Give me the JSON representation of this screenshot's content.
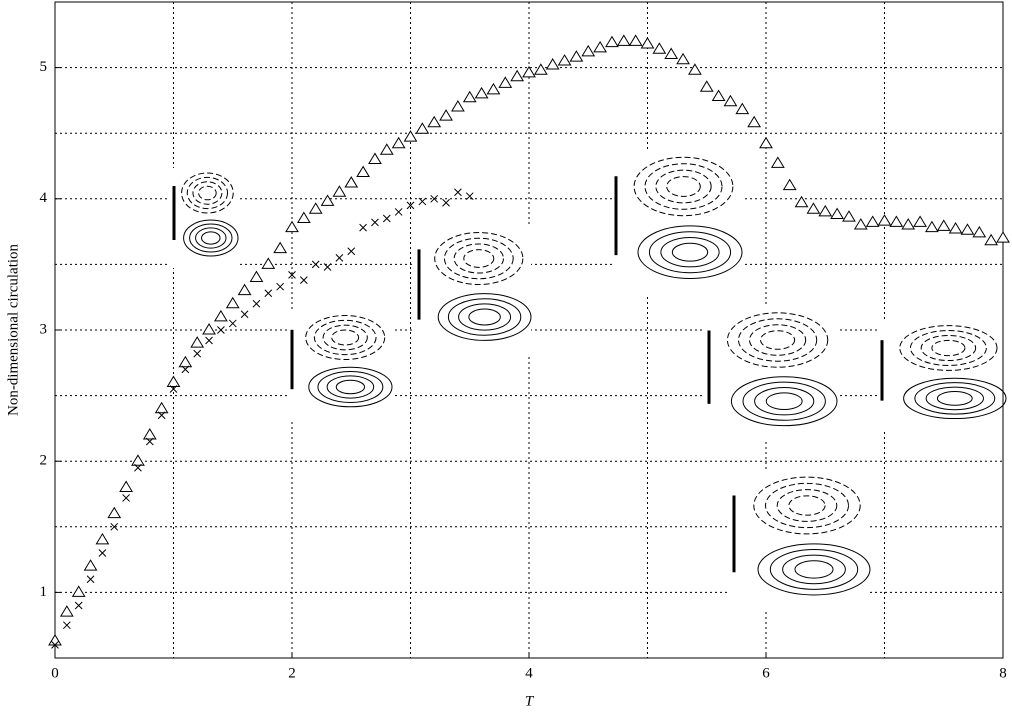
{
  "chart_data": {
    "type": "scatter",
    "xlabel": "T",
    "ylabel": "Non-dimensional circulation",
    "xlim": [
      0,
      8
    ],
    "ylim": [
      0.5,
      5.5
    ],
    "xticks": [
      0,
      2,
      4,
      6,
      8
    ],
    "yticks": [
      1,
      2,
      3,
      4,
      5
    ],
    "x_minor_grid": [
      1,
      3,
      5,
      7
    ],
    "y_minor_grid": [
      1.5,
      2.5,
      3.5,
      4.5
    ],
    "grid": true,
    "series": [
      {
        "marker": "triangle",
        "color": "#000000",
        "x": [
          0,
          0.1,
          0.2,
          0.3,
          0.4,
          0.5,
          0.6,
          0.7,
          0.8,
          0.9,
          1.0,
          1.1,
          1.2,
          1.3,
          1.4,
          1.5,
          1.6,
          1.7,
          1.8,
          1.9,
          2.0,
          2.1,
          2.2,
          2.3,
          2.4,
          2.5,
          2.6,
          2.7,
          2.8,
          2.9,
          3.0,
          3.1,
          3.2,
          3.3,
          3.4,
          3.5,
          3.6,
          3.7,
          3.8,
          3.9,
          4.0,
          4.1,
          4.2,
          4.3,
          4.4,
          4.5,
          4.6,
          4.7,
          4.8,
          4.9,
          5.0,
          5.1,
          5.2,
          5.3,
          5.4,
          5.5,
          5.6,
          5.7,
          5.8,
          5.9,
          6.0,
          6.1,
          6.2,
          6.3,
          6.4,
          6.5,
          6.6,
          6.7,
          6.8,
          6.9,
          7.0,
          7.1,
          7.2,
          7.3,
          7.4,
          7.5,
          7.6,
          7.7,
          7.8,
          7.9,
          8.0
        ],
        "values": [
          0.63,
          0.85,
          1.0,
          1.2,
          1.4,
          1.6,
          1.8,
          2.0,
          2.2,
          2.4,
          2.6,
          2.75,
          2.9,
          3.0,
          3.1,
          3.2,
          3.3,
          3.4,
          3.5,
          3.62,
          3.78,
          3.85,
          3.92,
          3.98,
          4.05,
          4.12,
          4.2,
          4.3,
          4.37,
          4.42,
          4.47,
          4.53,
          4.58,
          4.63,
          4.7,
          4.77,
          4.8,
          4.83,
          4.88,
          4.93,
          4.96,
          4.98,
          5.02,
          5.05,
          5.08,
          5.12,
          5.15,
          5.19,
          5.2,
          5.2,
          5.18,
          5.14,
          5.1,
          5.06,
          4.98,
          4.85,
          4.78,
          4.74,
          4.68,
          4.58,
          4.42,
          4.27,
          4.1,
          3.97,
          3.92,
          3.9,
          3.88,
          3.86,
          3.8,
          3.82,
          3.83,
          3.82,
          3.8,
          3.82,
          3.78,
          3.79,
          3.77,
          3.76,
          3.74,
          3.68,
          3.7
        ]
      },
      {
        "marker": "cross",
        "color": "#000000",
        "x": [
          0,
          0.1,
          0.2,
          0.3,
          0.4,
          0.5,
          0.6,
          0.7,
          0.8,
          0.9,
          1.0,
          1.1,
          1.2,
          1.3,
          1.4,
          1.5,
          1.6,
          1.7,
          1.8,
          1.9,
          2.0,
          2.1,
          2.2,
          2.3,
          2.4,
          2.5,
          2.6,
          2.7,
          2.8,
          2.9,
          3.0,
          3.1,
          3.2,
          3.3,
          3.4,
          3.5
        ],
        "values": [
          0.6,
          0.75,
          0.9,
          1.1,
          1.3,
          1.5,
          1.72,
          1.95,
          2.15,
          2.35,
          2.55,
          2.7,
          2.82,
          2.92,
          3.0,
          3.05,
          3.12,
          3.2,
          3.28,
          3.33,
          3.42,
          3.38,
          3.5,
          3.48,
          3.55,
          3.6,
          3.78,
          3.82,
          3.85,
          3.9,
          3.95,
          3.98,
          4.0,
          3.97,
          4.05,
          4.02
        ]
      }
    ]
  }
}
